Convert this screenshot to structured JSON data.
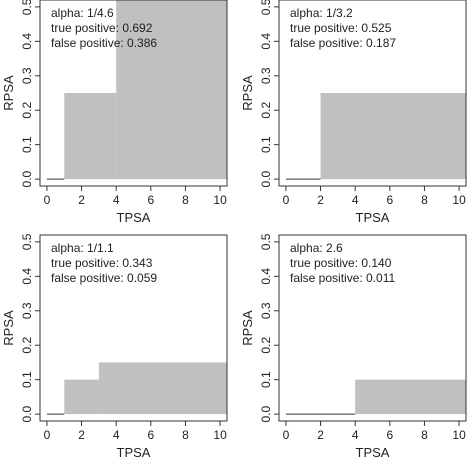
{
  "chart_data": [
    {
      "type": "area",
      "xlabel": "TPSA",
      "ylabel": "RPSA",
      "xlim": [
        -0.4,
        10.4
      ],
      "ylim": [
        -0.02,
        0.52
      ],
      "xticks": [
        "0",
        "2",
        "4",
        "6",
        "8",
        "10"
      ],
      "yticks": [
        "0.0",
        "0.1",
        "0.2",
        "0.3",
        "0.4",
        "0.5"
      ],
      "annotations": [
        "alpha: 1/4.6",
        "true positive: 0.692",
        "false positive: 0.386"
      ],
      "region": [
        {
          "x0": 1,
          "x1": 4,
          "y0": 0,
          "y1": 0.25
        },
        {
          "x0": 4,
          "x1": 10.4,
          "y0": 0,
          "y1": 0.52
        }
      ],
      "baseline": [
        0,
        1
      ]
    },
    {
      "type": "area",
      "xlabel": "TPSA",
      "ylabel": "RPSA",
      "xlim": [
        -0.4,
        10.4
      ],
      "ylim": [
        -0.02,
        0.52
      ],
      "xticks": [
        "0",
        "2",
        "4",
        "6",
        "8",
        "10"
      ],
      "yticks": [
        "0.0",
        "0.1",
        "0.2",
        "0.3",
        "0.4",
        "0.5"
      ],
      "annotations": [
        "alpha: 1/3.2",
        "true positive: 0.525",
        "false positive: 0.187"
      ],
      "region": [
        {
          "x0": 2,
          "x1": 10.4,
          "y0": 0,
          "y1": 0.25
        }
      ],
      "baseline": [
        0,
        2
      ]
    },
    {
      "type": "area",
      "xlabel": "TPSA",
      "ylabel": "RPSA",
      "xlim": [
        -0.4,
        10.4
      ],
      "ylim": [
        -0.02,
        0.52
      ],
      "xticks": [
        "0",
        "2",
        "4",
        "6",
        "8",
        "10"
      ],
      "yticks": [
        "0.0",
        "0.1",
        "0.2",
        "0.3",
        "0.4",
        "0.5"
      ],
      "annotations": [
        "alpha: 1/1.1",
        "true positive: 0.343",
        "false positive: 0.059"
      ],
      "region": [
        {
          "x0": 1,
          "x1": 3,
          "y0": 0,
          "y1": 0.1
        },
        {
          "x0": 3,
          "x1": 10.4,
          "y0": 0,
          "y1": 0.15
        }
      ],
      "baseline": [
        0,
        1
      ]
    },
    {
      "type": "area",
      "xlabel": "TPSA",
      "ylabel": "RPSA",
      "xlim": [
        -0.4,
        10.4
      ],
      "ylim": [
        -0.02,
        0.52
      ],
      "xticks": [
        "0",
        "2",
        "4",
        "6",
        "8",
        "10"
      ],
      "yticks": [
        "0.0",
        "0.1",
        "0.2",
        "0.3",
        "0.4",
        "0.5"
      ],
      "annotations": [
        "alpha: 2.6",
        "true positive: 0.140",
        "false positive: 0.011"
      ],
      "region": [
        {
          "x0": 4,
          "x1": 10.4,
          "y0": 0,
          "y1": 0.1
        }
      ],
      "baseline": [
        0,
        4
      ]
    }
  ],
  "colors": {
    "fill": "#c0c0c0",
    "axis": "#333333",
    "frame": "#333333"
  }
}
